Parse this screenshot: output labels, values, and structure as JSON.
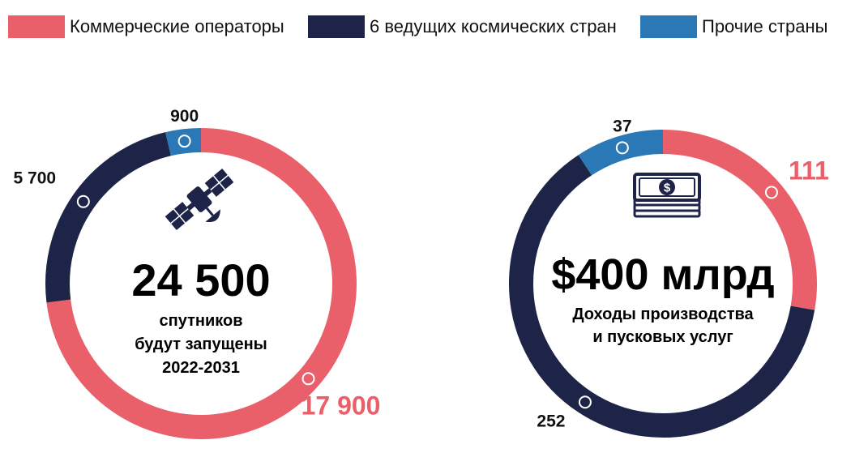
{
  "colors": {
    "commercial": "#e9606a",
    "leading": "#1e2448",
    "other": "#2a78b6"
  },
  "legend": [
    {
      "label": "Коммерческие операторы",
      "color_key": "commercial"
    },
    {
      "label": "6 ведущих космических стран",
      "color_key": "leading"
    },
    {
      "label": "Прочие страны",
      "color_key": "other"
    }
  ],
  "chart_data": [
    {
      "type": "pie",
      "donut": true,
      "categories": [
        "Коммерческие операторы",
        "6 ведущих космических стран",
        "Прочие страны"
      ],
      "values": [
        17900,
        5700,
        900
      ],
      "value_labels": [
        "17 900",
        "5 700",
        "900"
      ],
      "center_value": "24 500",
      "center_lines": [
        "спутников",
        "будут запущены",
        "2022-2031"
      ],
      "icon": "satellite-icon"
    },
    {
      "type": "pie",
      "donut": true,
      "categories": [
        "Коммерческие операторы",
        "6 ведущих космических стран",
        "Прочие страны"
      ],
      "values": [
        111,
        252,
        37
      ],
      "value_labels": [
        "111",
        "252",
        "37"
      ],
      "center_value": "$400 млрд",
      "center_lines": [
        "Доходы производства",
        "и пусковых услуг"
      ],
      "icon": "money-stack-icon"
    }
  ]
}
